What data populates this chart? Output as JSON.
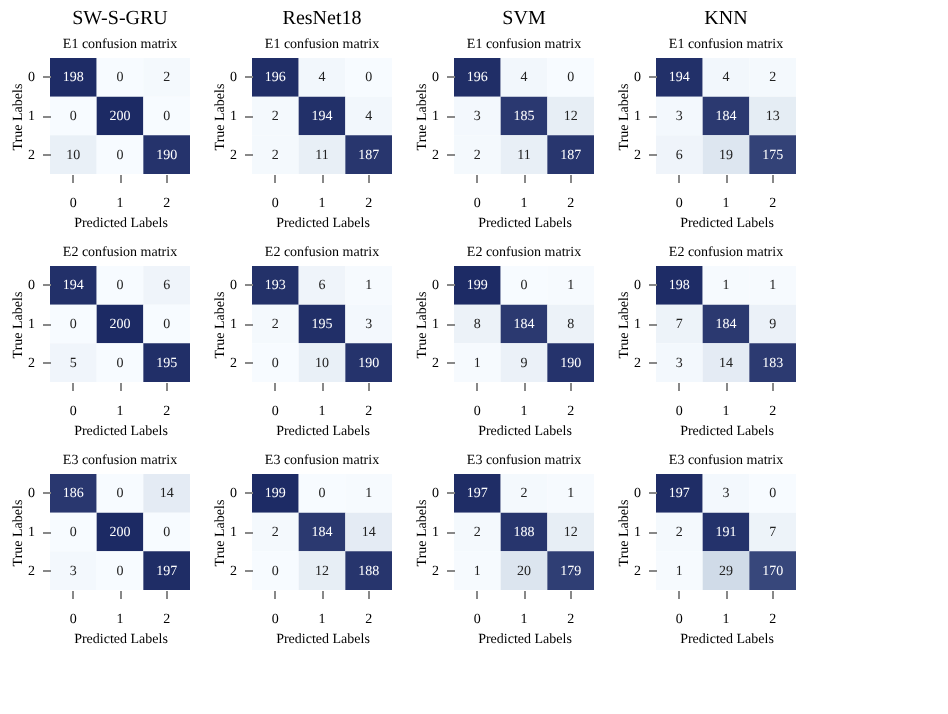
{
  "chart_data": [
    {
      "type": "heatmap",
      "title": "SW-S-GRU",
      "subtitle": "E1 confusion matrix",
      "xlabel": "Predicted Labels",
      "ylabel": "True Labels",
      "categories": [
        "0",
        "1",
        "2"
      ],
      "y_categories": [
        "0",
        "1",
        "2"
      ],
      "cells": [
        [
          198,
          0,
          2
        ],
        [
          0,
          200,
          0
        ],
        [
          10,
          0,
          190
        ]
      ],
      "data_labels": true
    },
    {
      "type": "heatmap",
      "title": "ResNet18",
      "subtitle": "E1 confusion matrix",
      "xlabel": "Predicted Labels",
      "ylabel": "True Labels",
      "categories": [
        "0",
        "1",
        "2"
      ],
      "y_categories": [
        "0",
        "1",
        "2"
      ],
      "cells": [
        [
          196,
          4,
          0
        ],
        [
          2,
          194,
          4
        ],
        [
          2,
          11,
          187
        ]
      ],
      "data_labels": true
    },
    {
      "type": "heatmap",
      "title": "SVM",
      "subtitle": "E1 confusion matrix",
      "xlabel": "Predicted Labels",
      "ylabel": "True Labels",
      "categories": [
        "0",
        "1",
        "2"
      ],
      "y_categories": [
        "0",
        "1",
        "2"
      ],
      "cells": [
        [
          196,
          4,
          0
        ],
        [
          3,
          185,
          12
        ],
        [
          2,
          11,
          187
        ]
      ],
      "data_labels": true
    },
    {
      "type": "heatmap",
      "title": "KNN",
      "subtitle": "E1 confusion matrix",
      "xlabel": "Predicted Labels",
      "ylabel": "True Labels",
      "categories": [
        "0",
        "1",
        "2"
      ],
      "y_categories": [
        "0",
        "1",
        "2"
      ],
      "cells": [
        [
          194,
          4,
          2
        ],
        [
          3,
          184,
          13
        ],
        [
          6,
          19,
          175
        ]
      ],
      "data_labels": true
    },
    {
      "type": "heatmap",
      "title": "E2 confusion matrix",
      "xlabel": "Predicted Labels",
      "ylabel": "True Labels",
      "categories": [
        "0",
        "1",
        "2"
      ],
      "y_categories": [
        "0",
        "1",
        "2"
      ],
      "cells": [
        [
          194,
          0,
          6
        ],
        [
          0,
          200,
          0
        ],
        [
          5,
          0,
          195
        ]
      ],
      "data_labels": true
    },
    {
      "type": "heatmap",
      "title": "E2 confusion matrix",
      "xlabel": "Predicted Labels",
      "ylabel": "True Labels",
      "categories": [
        "0",
        "1",
        "2"
      ],
      "y_categories": [
        "0",
        "1",
        "2"
      ],
      "cells": [
        [
          193,
          6,
          1
        ],
        [
          2,
          195,
          3
        ],
        [
          0,
          10,
          190
        ]
      ],
      "data_labels": true
    },
    {
      "type": "heatmap",
      "title": "E2 confusion matrix",
      "xlabel": "Predicted Labels",
      "ylabel": "True Labels",
      "categories": [
        "0",
        "1",
        "2"
      ],
      "y_categories": [
        "0",
        "1",
        "2"
      ],
      "cells": [
        [
          199,
          0,
          1
        ],
        [
          8,
          184,
          8
        ],
        [
          1,
          9,
          190
        ]
      ],
      "data_labels": true
    },
    {
      "type": "heatmap",
      "title": "E2 confusion matrix",
      "xlabel": "Predicted Labels",
      "ylabel": "True Labels",
      "categories": [
        "0",
        "1",
        "2"
      ],
      "y_categories": [
        "0",
        "1",
        "2"
      ],
      "cells": [
        [
          198,
          1,
          1
        ],
        [
          7,
          184,
          9
        ],
        [
          3,
          14,
          183
        ]
      ],
      "data_labels": true
    },
    {
      "type": "heatmap",
      "title": "E3 confusion matrix",
      "xlabel": "Predicted Labels",
      "ylabel": "True Labels",
      "categories": [
        "0",
        "1",
        "2"
      ],
      "y_categories": [
        "0",
        "1",
        "2"
      ],
      "cells": [
        [
          186,
          0,
          14
        ],
        [
          0,
          200,
          0
        ],
        [
          3,
          0,
          197
        ]
      ],
      "data_labels": true
    },
    {
      "type": "heatmap",
      "title": "E3 confusion matrix",
      "xlabel": "Predicted Labels",
      "ylabel": "True Labels",
      "categories": [
        "0",
        "1",
        "2"
      ],
      "y_categories": [
        "0",
        "1",
        "2"
      ],
      "cells": [
        [
          199,
          0,
          1
        ],
        [
          2,
          184,
          14
        ],
        [
          0,
          12,
          188
        ]
      ],
      "data_labels": true
    },
    {
      "type": "heatmap",
      "title": "E3 confusion matrix",
      "xlabel": "Predicted Labels",
      "ylabel": "True Labels",
      "categories": [
        "0",
        "1",
        "2"
      ],
      "y_categories": [
        "0",
        "1",
        "2"
      ],
      "cells": [
        [
          197,
          2,
          1
        ],
        [
          2,
          188,
          12
        ],
        [
          1,
          20,
          179
        ]
      ],
      "data_labels": true
    },
    {
      "type": "heatmap",
      "title": "E3 confusion matrix",
      "xlabel": "Predicted Labels",
      "ylabel": "True Labels",
      "categories": [
        "0",
        "1",
        "2"
      ],
      "y_categories": [
        "0",
        "1",
        "2"
      ],
      "cells": [
        [
          197,
          3,
          0
        ],
        [
          2,
          191,
          7
        ],
        [
          1,
          29,
          170
        ]
      ],
      "data_labels": true
    }
  ]
}
